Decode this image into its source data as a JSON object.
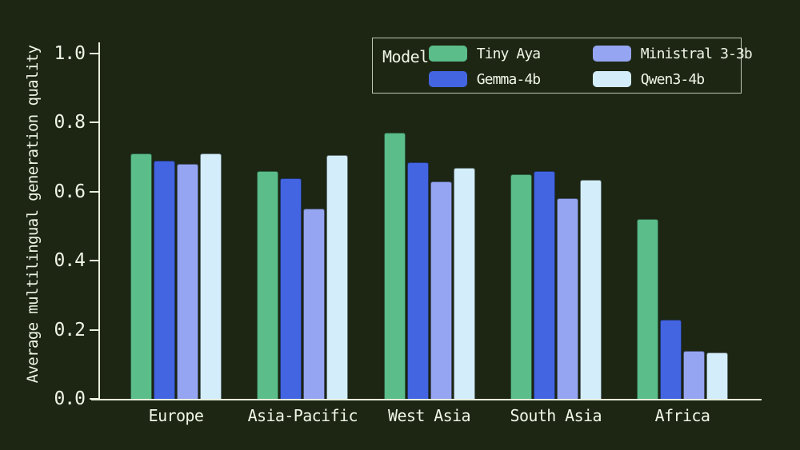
{
  "theme": {
    "background": "#1c2613",
    "text": "#f1f5e6",
    "axis": "#e9efdc"
  },
  "chart_data": {
    "type": "bar",
    "title": "",
    "xlabel": "",
    "ylabel": "Average multilingual generation quality",
    "categories": [
      "Europe",
      "Asia-Pacific",
      "West Asia",
      "South Asia",
      "Africa"
    ],
    "series": [
      {
        "name": "Tiny Aya",
        "color": "#5bbd8a",
        "values": [
          0.71,
          0.66,
          0.77,
          0.65,
          0.52
        ]
      },
      {
        "name": "Gemma-4b",
        "color": "#4365e2",
        "values": [
          0.69,
          0.64,
          0.685,
          0.66,
          0.23
        ]
      },
      {
        "name": "Ministral 3-3b",
        "color": "#96a5f1",
        "values": [
          0.68,
          0.55,
          0.63,
          0.58,
          0.14
        ]
      },
      {
        "name": "Qwen3-4b",
        "color": "#d3edfb",
        "values": [
          0.71,
          0.705,
          0.67,
          0.635,
          0.135
        ]
      }
    ],
    "ylim": [
      0.0,
      1.0
    ],
    "yticks": [
      {
        "label": "1.0",
        "value": 1.0
      },
      {
        "label": "0.8",
        "value": 0.8
      },
      {
        "label": "0.6",
        "value": 0.6
      },
      {
        "label": "0.4",
        "value": 0.4
      },
      {
        "label": "0.2",
        "value": 0.2
      },
      {
        "label": "0.0",
        "value": 0.0
      }
    ],
    "grid": false,
    "legend": {
      "title": "Model",
      "position": "top-right"
    }
  }
}
